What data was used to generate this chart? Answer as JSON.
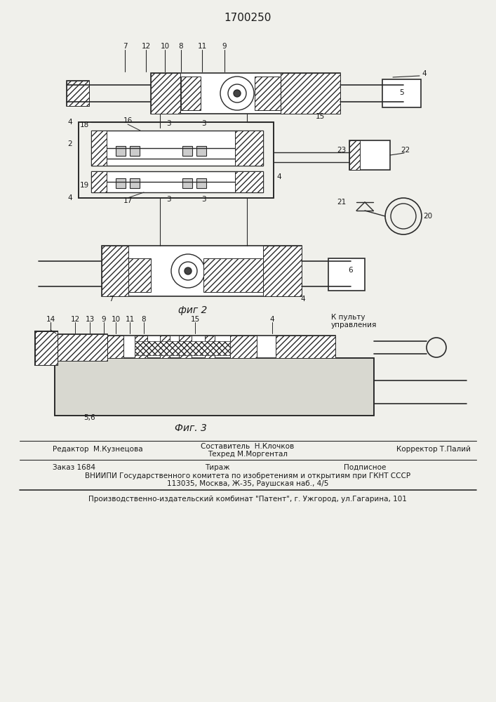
{
  "patent_number": "1700250",
  "background_color": "#f0f0eb",
  "fig2_caption": "фиг 2",
  "fig3_caption": "Фиг. 3",
  "footer_line1_left": "Редактор  М.Кузнецова",
  "footer_line1_mid1": "Составитель  Н.Клочков",
  "footer_line1_mid2": "Техред М.Моргентал",
  "footer_line1_right": "Корректор Т.Палий",
  "footer_line2a": "Заказ 1684",
  "footer_line2b": "Тираж",
  "footer_line2c": "Подписное",
  "footer_line3": "ВНИИПИ Государственного комитета по изобретениям и открытиям при ГКНТ СССР",
  "footer_line4": "113035, Москва, Ж-35, Раушская наб., 4/5",
  "footer_line5": "Производственно-издательский комбинат \"Патент\", г. Ужгород, ул.Гагарина, 101",
  "text_color": "#1a1a1a",
  "line_color": "#2a2a2a"
}
